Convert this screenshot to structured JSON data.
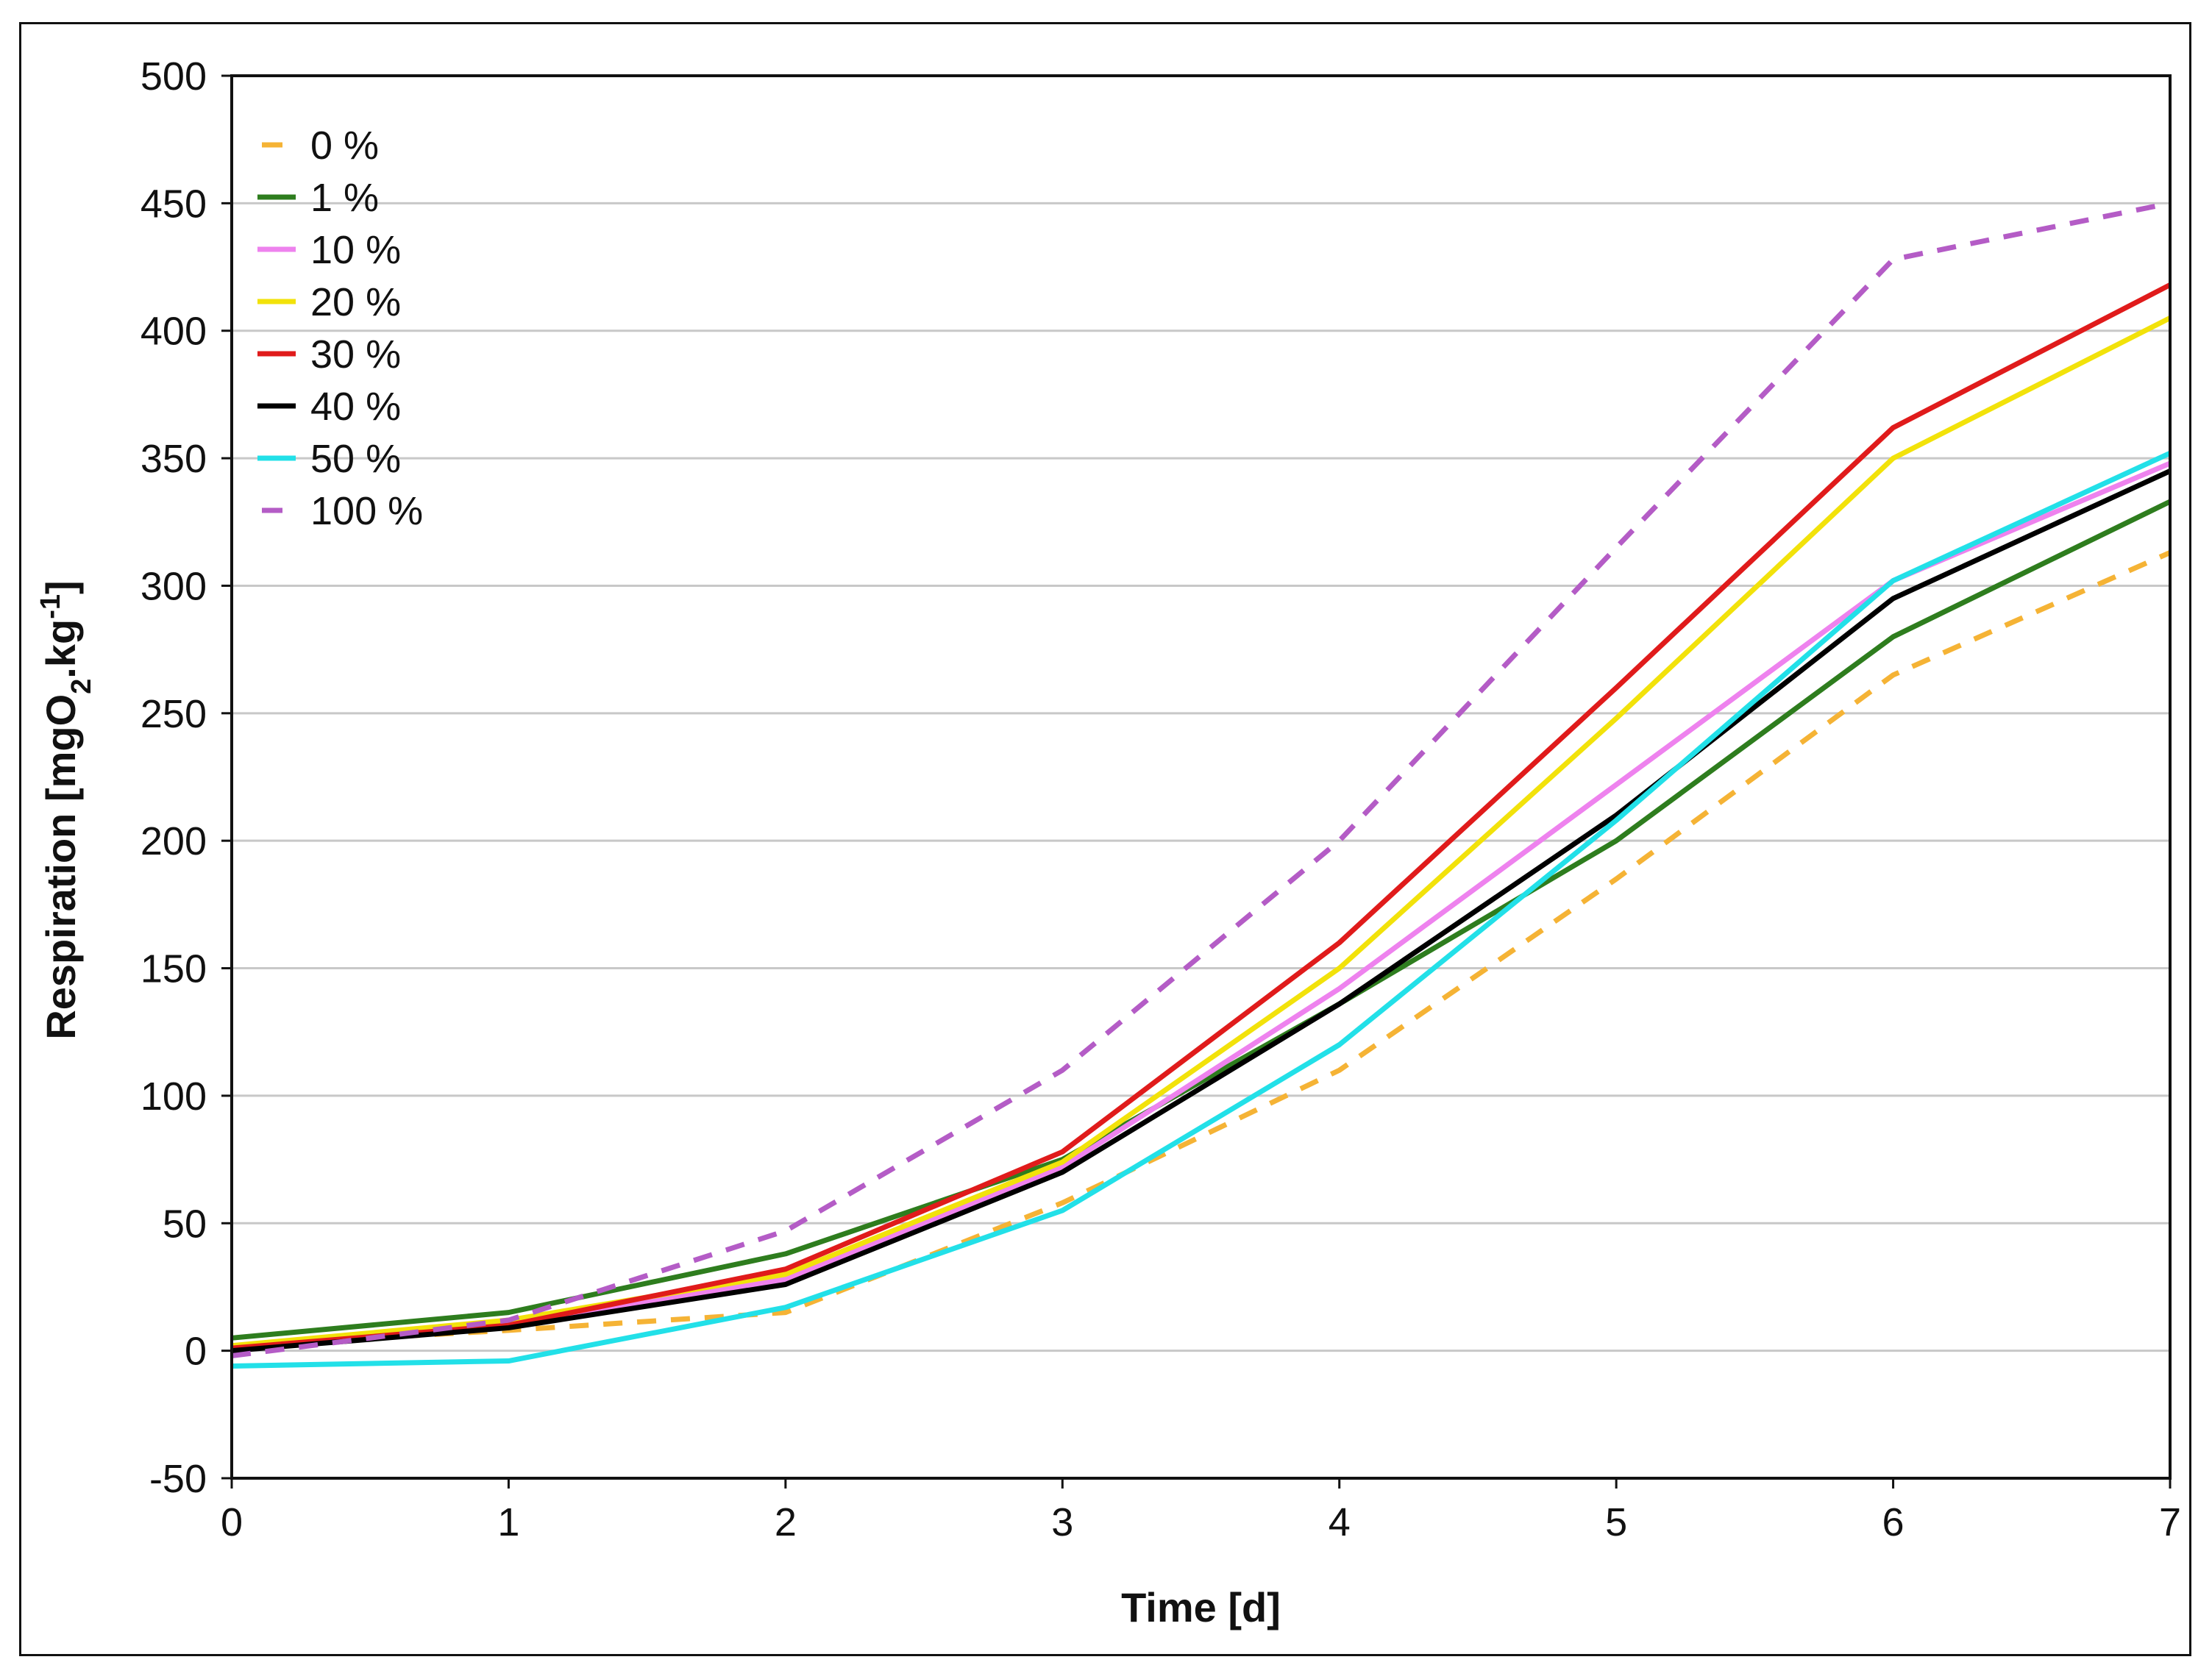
{
  "chart_data": {
    "type": "line",
    "title": "",
    "xlabel": "Time [d]",
    "ylabel_main": "Respiration [mgO",
    "ylabel_sub": "2",
    "ylabel_mid": ".kg",
    "ylabel_sup": "-1",
    "ylabel_end": "]",
    "xlim": [
      0,
      7
    ],
    "ylim": [
      -50,
      500
    ],
    "x_ticks": [
      "0",
      "1",
      "2",
      "3",
      "4",
      "5",
      "6",
      "7"
    ],
    "y_ticks": [
      "-50",
      "0",
      "50",
      "100",
      "150",
      "200",
      "250",
      "300",
      "350",
      "400",
      "450",
      "500"
    ],
    "grid": "horizontal",
    "legend_position": "top-left",
    "x": [
      0,
      1,
      2,
      3,
      4,
      5,
      6,
      7
    ],
    "series": [
      {
        "name": "0 %",
        "color": "#f5b335",
        "dashed": true,
        "values": [
          2,
          8,
          15,
          58,
          110,
          185,
          265,
          313
        ]
      },
      {
        "name": "1 %",
        "color": "#2e7d1e",
        "dashed": false,
        "values": [
          5,
          15,
          38,
          75,
          136,
          200,
          280,
          333
        ]
      },
      {
        "name": "10 %",
        "color": "#ee82ee",
        "dashed": false,
        "values": [
          0,
          10,
          28,
          72,
          142,
          222,
          302,
          348
        ]
      },
      {
        "name": "20 %",
        "color": "#f2e20a",
        "dashed": false,
        "values": [
          2,
          12,
          30,
          74,
          150,
          248,
          350,
          405
        ]
      },
      {
        "name": "30 %",
        "color": "#e01b1b",
        "dashed": false,
        "values": [
          1,
          10,
          32,
          78,
          160,
          260,
          362,
          418
        ]
      },
      {
        "name": "40 %",
        "color": "#000000",
        "dashed": false,
        "values": [
          0,
          9,
          26,
          70,
          136,
          210,
          295,
          345
        ]
      },
      {
        "name": "50 %",
        "color": "#22e0e8",
        "dashed": false,
        "values": [
          -6,
          -4,
          17,
          55,
          120,
          208,
          302,
          352
        ]
      },
      {
        "name": "100 %",
        "color": "#b45cc6",
        "dashed": true,
        "values": [
          -2,
          12,
          47,
          110,
          200,
          315,
          428,
          450
        ]
      }
    ]
  }
}
